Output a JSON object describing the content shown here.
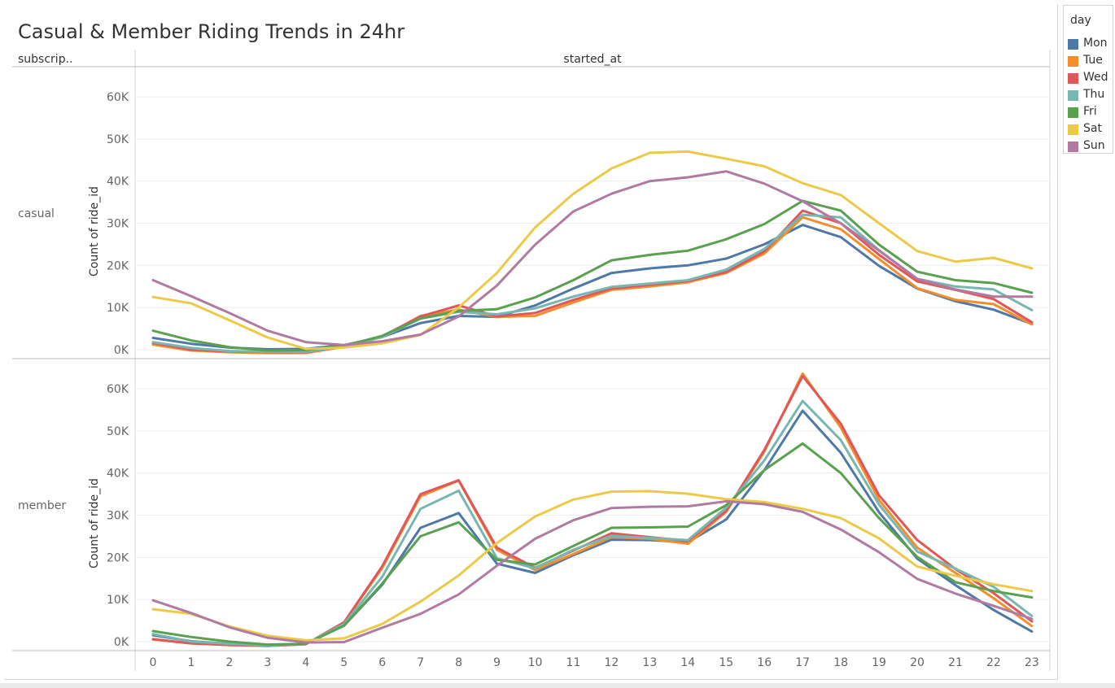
{
  "page": {
    "title": "Casual & Member Riding Trends in 24hr",
    "row_header": "subscrip..",
    "column_header": "started_at"
  },
  "legend": {
    "title": "day",
    "items": [
      {
        "label": "Mon",
        "color": "#4e79a7"
      },
      {
        "label": "Tue",
        "color": "#f28e2b"
      },
      {
        "label": "Wed",
        "color": "#e15759"
      },
      {
        "label": "Thu",
        "color": "#76b7b2"
      },
      {
        "label": "Fri",
        "color": "#59a14f"
      },
      {
        "label": "Sat",
        "color": "#edc948"
      },
      {
        "label": "Sun",
        "color": "#b07aa1"
      }
    ]
  },
  "chart_data": [
    {
      "type": "line",
      "panel": "casual",
      "ylabel": "Count of ride_id",
      "ylim": [
        0,
        65000
      ],
      "y_ticks": [
        "0K",
        "10K",
        "20K",
        "30K",
        "40K",
        "50K",
        "60K"
      ],
      "x": [
        0,
        1,
        2,
        3,
        4,
        5,
        6,
        7,
        8,
        9,
        10,
        11,
        12,
        13,
        14,
        15,
        16,
        17,
        18,
        19,
        20,
        21,
        22,
        23
      ],
      "series": [
        {
          "name": "Mon",
          "color": "#4e79a7",
          "values": [
            2800,
            1400,
            500,
            100,
            200,
            1100,
            3000,
            6300,
            8000,
            7800,
            10500,
            14500,
            18200,
            19300,
            20000,
            21600,
            25000,
            29600,
            26700,
            19900,
            14500,
            11500,
            9500,
            6100
          ]
        },
        {
          "name": "Tue",
          "color": "#f28e2b",
          "values": [
            1200,
            -200,
            -600,
            -800,
            -800,
            700,
            3000,
            8000,
            9500,
            7800,
            8000,
            11200,
            14200,
            15000,
            16000,
            18200,
            22800,
            31400,
            28600,
            21500,
            14600,
            11800,
            10800,
            6000
          ]
        },
        {
          "name": "Wed",
          "color": "#e15759",
          "values": [
            1600,
            0,
            -400,
            -600,
            -600,
            800,
            3200,
            7900,
            10500,
            7900,
            8700,
            11800,
            14500,
            15400,
            16300,
            18400,
            23300,
            33000,
            30000,
            22500,
            16200,
            14200,
            12000,
            6500
          ]
        },
        {
          "name": "Thu",
          "color": "#76b7b2",
          "values": [
            1800,
            400,
            -300,
            -500,
            -500,
            800,
            3000,
            7400,
            9000,
            8400,
            9800,
            12600,
            14900,
            15700,
            16500,
            19000,
            23900,
            32000,
            31400,
            23600,
            16800,
            15000,
            14300,
            9400
          ]
        },
        {
          "name": "Fri",
          "color": "#59a14f",
          "values": [
            4500,
            2200,
            600,
            -200,
            -100,
            900,
            3300,
            7400,
            9200,
            9600,
            12400,
            16500,
            21200,
            22500,
            23500,
            26200,
            29800,
            35300,
            33000,
            24900,
            18500,
            16500,
            15800,
            13500
          ]
        },
        {
          "name": "Sat",
          "color": "#edc948",
          "values": [
            12500,
            11000,
            7000,
            2900,
            200,
            500,
            1500,
            3500,
            10000,
            18200,
            29000,
            37000,
            43000,
            46700,
            47000,
            45300,
            43500,
            39500,
            36700,
            30000,
            23400,
            20900,
            21800,
            19300
          ]
        },
        {
          "name": "Sun",
          "color": "#b07aa1",
          "values": [
            16500,
            12700,
            8700,
            4500,
            1800,
            1100,
            2000,
            3600,
            7900,
            15200,
            24900,
            32800,
            37000,
            40000,
            40900,
            42300,
            39400,
            35200,
            30000,
            23500,
            16800,
            14300,
            12600,
            12600
          ]
        }
      ]
    },
    {
      "type": "line",
      "panel": "member",
      "ylabel": "Count of ride_id",
      "ylim": [
        0,
        65000
      ],
      "y_ticks": [
        "0K",
        "10K",
        "20K",
        "30K",
        "40K",
        "50K",
        "60K"
      ],
      "x": [
        0,
        1,
        2,
        3,
        4,
        5,
        6,
        7,
        8,
        9,
        10,
        11,
        12,
        13,
        14,
        15,
        16,
        17,
        18,
        19,
        20,
        21,
        22,
        23
      ],
      "series": [
        {
          "name": "Mon",
          "color": "#4e79a7",
          "values": [
            1500,
            100,
            -500,
            -900,
            -500,
            3800,
            13500,
            27000,
            30500,
            18500,
            16300,
            20500,
            24200,
            24100,
            23600,
            29000,
            40700,
            54800,
            44800,
            30700,
            19700,
            13400,
            7500,
            2400
          ]
        },
        {
          "name": "Tue",
          "color": "#f28e2b",
          "values": [
            500,
            -400,
            -800,
            -1000,
            -600,
            4600,
            17500,
            34500,
            38200,
            21800,
            17000,
            20800,
            24800,
            24400,
            23200,
            30800,
            45100,
            63600,
            50800,
            33600,
            22300,
            16300,
            10300,
            3700
          ]
        },
        {
          "name": "Wed",
          "color": "#e15759",
          "values": [
            600,
            -400,
            -800,
            -1000,
            -600,
            4600,
            17900,
            35000,
            38300,
            22300,
            17500,
            21600,
            25700,
            24800,
            23900,
            31000,
            45500,
            63000,
            51700,
            34700,
            24100,
            17200,
            11500,
            4800
          ]
        },
        {
          "name": "Thu",
          "color": "#76b7b2",
          "values": [
            1800,
            0,
            -500,
            -900,
            -500,
            4200,
            15400,
            31500,
            35800,
            19800,
            17400,
            21800,
            25100,
            24600,
            24100,
            31800,
            43000,
            57100,
            47800,
            32500,
            21400,
            17300,
            13000,
            6100
          ]
        },
        {
          "name": "Fri",
          "color": "#59a14f",
          "values": [
            2500,
            1100,
            0,
            -700,
            -500,
            3800,
            13800,
            25000,
            28300,
            19400,
            18300,
            22700,
            27000,
            27100,
            27300,
            32400,
            40700,
            47000,
            40000,
            29300,
            20100,
            14100,
            12000,
            10500
          ]
        },
        {
          "name": "Sat",
          "color": "#edc948",
          "values": [
            7700,
            6600,
            3600,
            1400,
            300,
            800,
            4200,
            9500,
            15700,
            23400,
            29700,
            33700,
            35600,
            35700,
            35100,
            33800,
            33100,
            31500,
            29300,
            24500,
            17800,
            15600,
            13600,
            12000
          ]
        },
        {
          "name": "Sun",
          "color": "#b07aa1",
          "values": [
            9800,
            6800,
            3400,
            900,
            -200,
            -100,
            3300,
            6600,
            11200,
            18000,
            24400,
            28800,
            31700,
            32000,
            32100,
            33300,
            32600,
            30800,
            26600,
            21200,
            14900,
            11400,
            8500,
            5400
          ]
        }
      ]
    }
  ]
}
